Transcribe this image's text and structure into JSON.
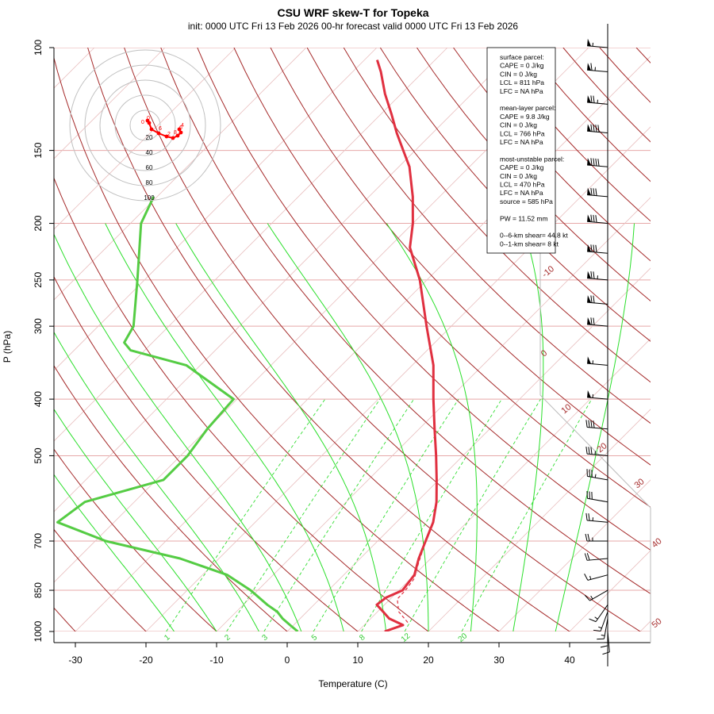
{
  "title": "CSU WRF skew-T for Topeka",
  "subtitle": "init: 0000 UTC Fri 13 Feb 2026     00-hr forecast valid 0000 UTC Fri 13 Feb 2026",
  "info_box": {
    "lines": [
      "surface parcel:",
      "CAPE = 0 J/kg",
      "CIN = 0 J/kg",
      "LCL = 811 hPa",
      "LFC = NA hPa",
      "",
      "mean-layer parcel:",
      "CAPE = 9.8 J/kg",
      "CIN = 0 J/kg",
      "LCL = 766 hPa",
      "LFC = NA hPa",
      "",
      "most-unstable parcel:",
      "CAPE = 0 J/kg",
      "CIN = 0 J/kg",
      "LCL = 470 hPa",
      "LFC = NA hPa",
      "source = 585 hPa",
      "",
      "PW =  11.52 mm",
      "",
      "0--6-km shear= 44.8 kt",
      "0--1-km shear= 8 kt"
    ]
  },
  "chart_data": {
    "type": "line",
    "title": "CSU WRF skew-T for Topeka",
    "xlabel": "Temperature (C)",
    "ylabel": "P (hPa)",
    "x_ticks": [
      "-30",
      "-20",
      "-10",
      "0",
      "10",
      "20",
      "30",
      "40"
    ],
    "y_ticks": [
      "100",
      "150",
      "200",
      "250",
      "300",
      "400",
      "500",
      "700",
      "850",
      "1000"
    ],
    "y_scale": "log",
    "ylim": [
      1000,
      100
    ],
    "isotherm_labels": [
      "-10",
      "0",
      "10",
      "20",
      "30",
      "40",
      "50"
    ],
    "mixing_ratio_labels": [
      "1",
      "2",
      "3",
      "5",
      "8",
      "12",
      "20"
    ],
    "series": [
      {
        "name": "Temperature",
        "color": "#e03040",
        "points": [
          [
            1000,
            13.8
          ],
          [
            975,
            15.5
          ],
          [
            950,
            12.6
          ],
          [
            925,
            10.8
          ],
          [
            900,
            8.9
          ],
          [
            875,
            9.2
          ],
          [
            850,
            10.5
          ],
          [
            800,
            10.0
          ],
          [
            750,
            8.3
          ],
          [
            700,
            6.8
          ],
          [
            650,
            5.2
          ],
          [
            600,
            2.8
          ],
          [
            550,
            -0.3
          ],
          [
            500,
            -3.8
          ],
          [
            450,
            -7.8
          ],
          [
            400,
            -12.2
          ],
          [
            350,
            -17.0
          ],
          [
            300,
            -23.5
          ],
          [
            250,
            -31.0
          ],
          [
            220,
            -37.0
          ],
          [
            200,
            -40.0
          ],
          [
            180,
            -43.8
          ],
          [
            160,
            -48.5
          ],
          [
            150,
            -51.7
          ],
          [
            140,
            -55.1
          ],
          [
            130,
            -58.5
          ],
          [
            120,
            -62.3
          ],
          [
            110,
            -66.0
          ],
          [
            105,
            -68.2
          ]
        ]
      },
      {
        "name": "Dewpoint",
        "color": "#55cc44",
        "points": [
          [
            1000,
            1.5
          ],
          [
            975,
            -0.5
          ],
          [
            950,
            -2.5
          ],
          [
            925,
            -4.2
          ],
          [
            900,
            -6.6
          ],
          [
            850,
            -11.0
          ],
          [
            800,
            -16.5
          ],
          [
            750,
            -25.5
          ],
          [
            700,
            -38.5
          ],
          [
            650,
            -48.0
          ],
          [
            600,
            -47.0
          ],
          [
            550,
            -39.0
          ],
          [
            500,
            -39.0
          ],
          [
            450,
            -40.0
          ],
          [
            400,
            -40.5
          ],
          [
            350,
            -52.0
          ],
          [
            330,
            -62.0
          ],
          [
            320,
            -64.0
          ],
          [
            300,
            -65.0
          ],
          [
            250,
            -71.0
          ],
          [
            200,
            -78.5
          ],
          [
            180,
            -80.5
          ]
        ]
      },
      {
        "name": "Parcel",
        "color": "#e03040",
        "dashed": true,
        "points": [
          [
            965,
            15.8
          ],
          [
            925,
            13.0
          ],
          [
            880,
            11.0
          ],
          [
            850,
            10.9
          ],
          [
            811,
            10.5
          ],
          [
            760,
            8.8
          ],
          [
            720,
            7.5
          ]
        ]
      }
    ],
    "wind_barbs": [
      {
        "p": 1000,
        "dir": 175,
        "kt": 10
      },
      {
        "p": 975,
        "dir": 180,
        "kt": 15
      },
      {
        "p": 950,
        "dir": 190,
        "kt": 15
      },
      {
        "p": 925,
        "dir": 200,
        "kt": 15
      },
      {
        "p": 900,
        "dir": 215,
        "kt": 15
      },
      {
        "p": 850,
        "dir": 240,
        "kt": 15
      },
      {
        "p": 800,
        "dir": 255,
        "kt": 15
      },
      {
        "p": 750,
        "dir": 265,
        "kt": 20
      },
      {
        "p": 700,
        "dir": 270,
        "kt": 25
      },
      {
        "p": 650,
        "dir": 275,
        "kt": 25
      },
      {
        "p": 600,
        "dir": 280,
        "kt": 30
      },
      {
        "p": 550,
        "dir": 280,
        "kt": 35
      },
      {
        "p": 500,
        "dir": 275,
        "kt": 35
      },
      {
        "p": 450,
        "dir": 275,
        "kt": 40
      },
      {
        "p": 400,
        "dir": 275,
        "kt": 55
      },
      {
        "p": 350,
        "dir": 275,
        "kt": 55
      },
      {
        "p": 300,
        "dir": 275,
        "kt": 70
      },
      {
        "p": 275,
        "dir": 275,
        "kt": 70
      },
      {
        "p": 250,
        "dir": 275,
        "kt": 75
      },
      {
        "p": 225,
        "dir": 275,
        "kt": 80
      },
      {
        "p": 200,
        "dir": 275,
        "kt": 80
      },
      {
        "p": 180,
        "dir": 275,
        "kt": 80
      },
      {
        "p": 160,
        "dir": 275,
        "kt": 90
      },
      {
        "p": 140,
        "dir": 275,
        "kt": 90
      },
      {
        "p": 125,
        "dir": 275,
        "kt": 75
      },
      {
        "p": 110,
        "dir": 275,
        "kt": 65
      },
      {
        "p": 100,
        "dir": 275,
        "kt": 55
      }
    ],
    "hodograph": {
      "ring_labels": [
        "20",
        "40",
        "60",
        "80",
        "100"
      ],
      "point_labels": [
        "0",
        "0",
        "6",
        "2",
        "8",
        "4",
        "6"
      ],
      "points": [
        [
          0,
          0
        ],
        [
          2,
          1
        ],
        [
          5,
          -3
        ],
        [
          8,
          -7
        ],
        [
          12,
          -12
        ],
        [
          20,
          -16
        ],
        [
          26,
          -14
        ],
        [
          29,
          -12
        ],
        [
          28,
          -9
        ]
      ]
    }
  }
}
